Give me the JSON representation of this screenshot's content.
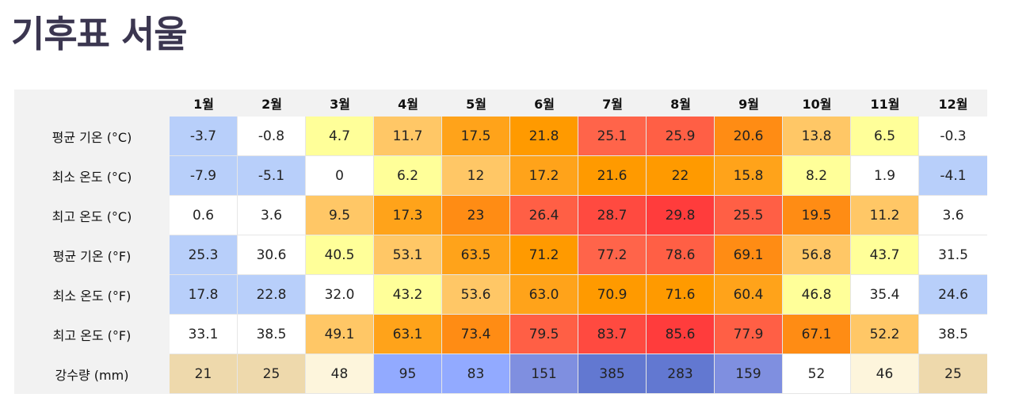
{
  "title": "기후표 서울",
  "months": [
    "1월",
    "2월",
    "3월",
    "4월",
    "5월",
    "6월",
    "7월",
    "8월",
    "9월",
    "10월",
    "11월",
    "12월"
  ],
  "rows": [
    {
      "label": "평균 기온 (°C)",
      "values": [
        "-3.7",
        "-0.8",
        "4.7",
        "11.7",
        "17.5",
        "21.8",
        "25.1",
        "25.9",
        "20.6",
        "13.8",
        "6.5",
        "-0.3"
      ],
      "colors": [
        "#b8cffa",
        "#ffffff",
        "#ffff99",
        "#ffc766",
        "#ffa31a",
        "#ff9a00",
        "#ff644a",
        "#ff5f45",
        "#ff8c14",
        "#ffc766",
        "#ffff99",
        "#ffffff"
      ]
    },
    {
      "label": "최소 온도 (°C)",
      "values": [
        "-7.9",
        "-5.1",
        "0",
        "6.2",
        "12",
        "17.2",
        "21.6",
        "22",
        "15.8",
        "8.2",
        "1.9",
        "-4.1"
      ],
      "colors": [
        "#b8cffa",
        "#b8cffa",
        "#ffffff",
        "#ffff99",
        "#ffc766",
        "#ffa31a",
        "#ff9a00",
        "#ff9a00",
        "#ffa31a",
        "#ffff99",
        "#ffffff",
        "#b8cffa"
      ]
    },
    {
      "label": "최고 온도 (°C)",
      "values": [
        "0.6",
        "3.6",
        "9.5",
        "17.3",
        "23",
        "26.4",
        "28.7",
        "29.8",
        "25.5",
        "19.5",
        "11.2",
        "3.6"
      ],
      "colors": [
        "#ffffff",
        "#ffffff",
        "#ffc766",
        "#ffa31a",
        "#ff8c14",
        "#ff5f45",
        "#ff4a40",
        "#ff3c3c",
        "#ff5f45",
        "#ff8c14",
        "#ffc766",
        "#ffffff"
      ]
    },
    {
      "label": "평균 기온 (°F)",
      "values": [
        "25.3",
        "30.6",
        "40.5",
        "53.1",
        "63.5",
        "71.2",
        "77.2",
        "78.6",
        "69.1",
        "56.8",
        "43.7",
        "31.5"
      ],
      "colors": [
        "#b8cffa",
        "#ffffff",
        "#ffff99",
        "#ffc766",
        "#ffa31a",
        "#ff9a00",
        "#ff644a",
        "#ff5f45",
        "#ff8c14",
        "#ffc766",
        "#ffff99",
        "#ffffff"
      ]
    },
    {
      "label": "최소 온도 (°F)",
      "values": [
        "17.8",
        "22.8",
        "32.0",
        "43.2",
        "53.6",
        "63.0",
        "70.9",
        "71.6",
        "60.4",
        "46.8",
        "35.4",
        "24.6"
      ],
      "colors": [
        "#b8cffa",
        "#b8cffa",
        "#ffffff",
        "#ffff99",
        "#ffc766",
        "#ffa31a",
        "#ff9a00",
        "#ff9a00",
        "#ffa31a",
        "#ffff99",
        "#ffffff",
        "#b8cffa"
      ]
    },
    {
      "label": "최고 온도 (°F)",
      "values": [
        "33.1",
        "38.5",
        "49.1",
        "63.1",
        "73.4",
        "79.5",
        "83.7",
        "85.6",
        "77.9",
        "67.1",
        "52.2",
        "38.5"
      ],
      "colors": [
        "#ffffff",
        "#ffffff",
        "#ffc766",
        "#ffa31a",
        "#ff8c14",
        "#ff5f45",
        "#ff4a40",
        "#ff3c3c",
        "#ff5f45",
        "#ff8c14",
        "#ffc766",
        "#ffffff"
      ]
    },
    {
      "label": "강수량 (mm)",
      "values": [
        "21",
        "25",
        "48",
        "95",
        "83",
        "151",
        "385",
        "283",
        "159",
        "52",
        "46",
        "25"
      ],
      "colors": [
        "#eed9ac",
        "#eed9ac",
        "#fdf5dc",
        "#92aaff",
        "#92aaff",
        "#7f8fe0",
        "#6278d1",
        "#6278d1",
        "#7f8fe0",
        "#ffffff",
        "#fdf5dc",
        "#eed9ac"
      ]
    }
  ]
}
